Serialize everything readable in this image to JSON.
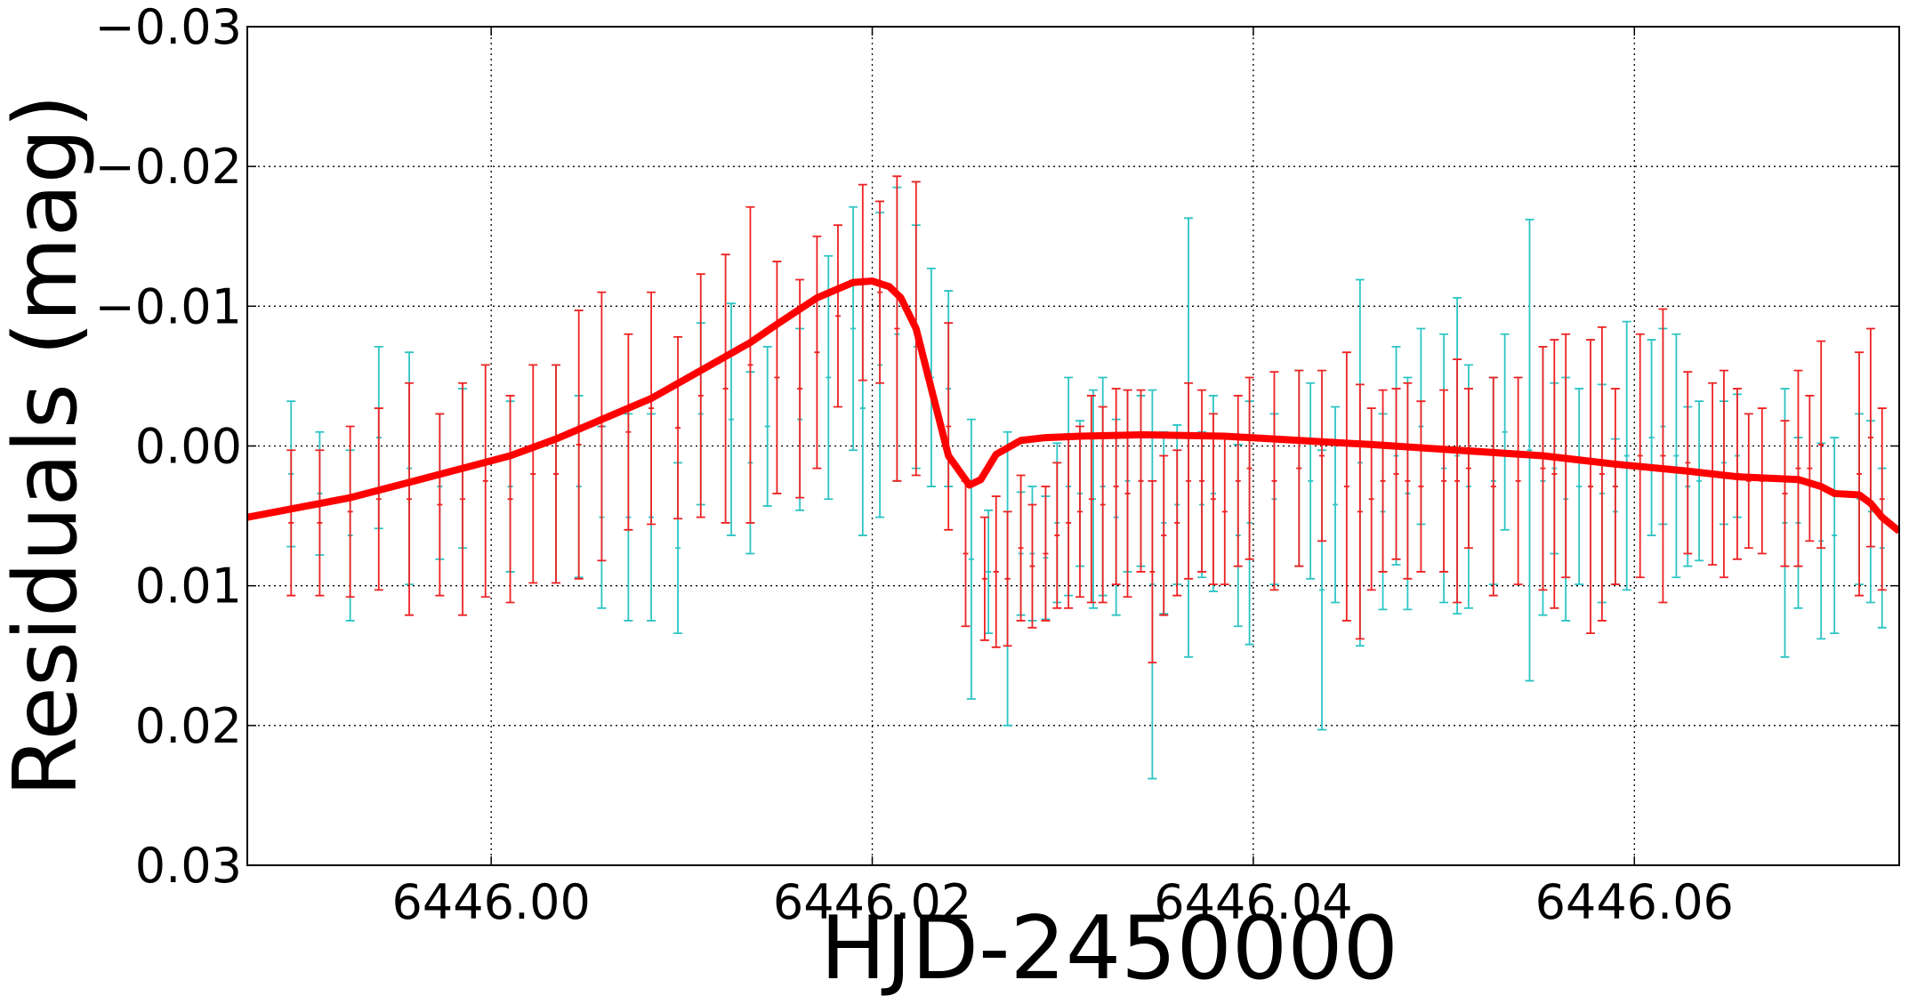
{
  "chart_data": {
    "type": "errorbar",
    "xlabel": "HJD-2450000",
    "ylabel": "Residuals (mag)",
    "xlim": [
      6445.9872,
      6446.0739
    ],
    "ylim": [
      0.03,
      -0.03
    ],
    "xticks": [
      {
        "value": 6446,
        "label": "6446.00"
      },
      6446.02,
      6446.04,
      6446.06
    ],
    "yticks": [
      {
        "value": -0.03,
        "label": "−0.03"
      },
      {
        "value": -0.02,
        "label": "−0.02"
      },
      {
        "value": -0.01,
        "label": "−0.01"
      },
      {
        "value": 0,
        "label": "0.00"
      },
      0.01,
      0.02,
      0.03
    ],
    "grid": true,
    "series": [
      {
        "kind": "errorbar",
        "color": "#2ec4c4",
        "x": [
          6445.9895,
          6445.991,
          6445.9926,
          6445.9941,
          6445.9957,
          6445.9973,
          6445.9985,
          6446.001,
          6446.0034,
          6446.0046,
          6446.0058,
          6446.0072,
          6446.0084,
          6446.0098,
          6446.011,
          6446.0126,
          6446.0136,
          6446.0145,
          6446.0162,
          6446.0177,
          6446.019,
          6446.0195,
          6446.0204,
          6446.0213,
          6446.0223,
          6446.0231,
          6446.024,
          6446.0252,
          6446.0261,
          6446.0271,
          6446.0278,
          6446.0284,
          6446.0291,
          6446.0297,
          6446.0303,
          6446.0309,
          6446.0316,
          6446.0321,
          6446.0328,
          6446.0334,
          6446.0341,
          6446.0347,
          6446.0353,
          6446.036,
          6446.0366,
          6446.0373,
          6446.0379,
          6446.0392,
          6446.0398,
          6446.0411,
          6446.0424,
          6446.043,
          6446.0436,
          6446.0443,
          6446.0456,
          6446.0468,
          6446.0475,
          6446.0481,
          6446.0488,
          6446.05,
          6446.0507,
          6446.0513,
          6446.0526,
          6446.0532,
          6446.0545,
          6446.0552,
          6446.0558,
          6446.0564,
          6446.0571,
          6446.0583,
          6446.059,
          6446.0596,
          6446.0609,
          6446.0615,
          6446.0622,
          6446.0628,
          6446.0634,
          6446.0647,
          6446.0654,
          6446.0679,
          6446.0686,
          6446.0698,
          6446.0705,
          6446.0718,
          6446.0724,
          6446.073
        ],
        "values": [
          0.002,
          0.0034,
          0.0064,
          -0.0006,
          0.0016,
          0.0029,
          0.0016,
          0.0029,
          0.002,
          0.0029,
          0.0051,
          0.0051,
          0.0051,
          0.0073,
          -0.0023,
          -0.0019,
          0.0012,
          -0.0014,
          -0.0019,
          -0.0049,
          -0.0084,
          -0.0027,
          -0.0058,
          -0.008,
          -0.0071,
          -0.0049,
          -0.0041,
          0.0081,
          0.009,
          0.0095,
          0.0077,
          0.0077,
          0.008,
          0.0055,
          0.0029,
          0.0034,
          0.0038,
          0.0029,
          0.0051,
          0.0025,
          0.0025,
          0.0099,
          0.0055,
          0.0042,
          -0.0006,
          0.0042,
          0.0034,
          0.0064,
          0.0055,
          0.0038,
          0.0016,
          0.0025,
          0.0103,
          0.0042,
          0.0012,
          0.0047,
          0.0007,
          0.0034,
          -0.0014,
          0.0016,
          0.0007,
          0.0029,
          0.0025,
          -0.001,
          0.0003,
          0.0025,
          0.0016,
          0.0038,
          0.0029,
          0.0034,
          0.0047,
          0.0007,
          -0.0006,
          -0.0014,
          0.0007,
          0.0029,
          0.0025,
          0.0012,
          0.0007,
          0.0055,
          0.0055,
          0.0068,
          0.0064,
          0.0038,
          0.0047,
          0.0073
        ],
        "errors": [
          0.0052,
          0.0044,
          0.0061,
          0.0065,
          0.0083,
          0.0052,
          0.0057,
          0.0061,
          0.0078,
          0.0065,
          0.0065,
          0.0074,
          0.0074,
          0.0061,
          0.0065,
          0.0083,
          0.0065,
          0.0057,
          0.0065,
          0.0087,
          0.0087,
          0.0091,
          0.0109,
          0.0105,
          0.0087,
          0.0078,
          0.007,
          0.01,
          0.0044,
          0.0105,
          0.0044,
          0.0048,
          0.0044,
          0.0057,
          0.0078,
          0.0052,
          0.0078,
          0.0078,
          0.007,
          0.0065,
          0.0061,
          0.0139,
          0.0065,
          0.0057,
          0.0157,
          0.0052,
          0.007,
          0.0065,
          0.0087,
          0.0061,
          0.007,
          0.007,
          0.01,
          0.007,
          0.0131,
          0.007,
          0.0078,
          0.0083,
          0.007,
          0.0096,
          0.0113,
          0.0087,
          0.0074,
          0.007,
          0.0165,
          0.0096,
          0.0061,
          0.0087,
          0.007,
          0.0078,
          0.0052,
          0.0096,
          0.007,
          0.007,
          0.0087,
          0.0057,
          0.0057,
          0.0044,
          0.0044,
          0.0096,
          0.0061,
          0.007,
          0.007,
          0.0061,
          0.0065,
          0.0057
        ]
      },
      {
        "kind": "errorbar",
        "color": "#ee2222",
        "x": [
          6445.9895,
          6445.991,
          6445.9926,
          6445.9941,
          6445.9957,
          6445.9973,
          6445.9985,
          6445.9997,
          6446.001,
          6446.0022,
          6446.0034,
          6446.0046,
          6446.0058,
          6446.0072,
          6446.0084,
          6446.0098,
          6446.011,
          6446.0123,
          6446.0136,
          6446.015,
          6446.0162,
          6446.0171,
          6446.0182,
          6446.0195,
          6446.0204,
          6446.0213,
          6446.0223,
          6446.024,
          6446.0249,
          6446.0259,
          6446.0265,
          6446.0271,
          6446.0278,
          6446.0284,
          6446.0291,
          6446.0297,
          6446.0303,
          6446.0309,
          6446.0315,
          6446.0321,
          6446.0328,
          6446.0334,
          6446.0341,
          6446.0347,
          6446.0353,
          6446.036,
          6446.0366,
          6446.0373,
          6446.0379,
          6446.0385,
          6446.0392,
          6446.0398,
          6446.0411,
          6446.0424,
          6446.0436,
          6446.0449,
          6446.0456,
          6446.0462,
          6446.0468,
          6446.0475,
          6446.0481,
          6446.0488,
          6446.05,
          6446.0507,
          6446.0513,
          6446.0526,
          6446.0539,
          6446.0552,
          6446.0558,
          6446.0564,
          6446.0577,
          6446.0583,
          6446.059,
          6446.0603,
          6446.0615,
          6446.0628,
          6446.0641,
          6446.0647,
          6446.0654,
          6446.066,
          6446.0667,
          6446.0679,
          6446.0686,
          6446.0692,
          6446.0698,
          6446.0718,
          6446.0724,
          6446.073
        ],
        "values": [
          0.0055,
          0.0055,
          0.0047,
          0.0038,
          0.0038,
          0.0042,
          0.0038,
          0.0025,
          0.0038,
          0.002,
          0.002,
          -0.0001,
          -0.0014,
          -0.001,
          -0.0027,
          -0.0013,
          -0.0036,
          -0.0041,
          -0.0058,
          -0.0049,
          -0.0041,
          -0.0067,
          -0.0093,
          -0.0117,
          -0.011,
          -0.0084,
          -0.0084,
          -0.0014,
          0.0077,
          0.0095,
          0.009,
          0.0095,
          0.0073,
          0.0086,
          0.0077,
          0.0064,
          0.0055,
          0.0047,
          0.0038,
          0.0042,
          0.0029,
          0.0034,
          0.0025,
          0.009,
          0.0064,
          0.0055,
          0.0025,
          0.0025,
          0.0038,
          0.0047,
          0.0025,
          0.0016,
          0.0025,
          0.0016,
          0.0007,
          0.0029,
          0.0047,
          0.0038,
          0.0025,
          0.002,
          0.0025,
          0.0029,
          0.0025,
          0.0025,
          0.0016,
          0.0029,
          0.0025,
          0.0016,
          0.002,
          0.0007,
          0.0029,
          0.002,
          0.0029,
          0.0007,
          0.0007,
          0.0012,
          0.002,
          0.002,
          0.002,
          0.0025,
          0.0025,
          0.0034,
          0.0016,
          0.0016,
          -0.0001,
          0.002,
          -0.0006,
          0.0038
        ],
        "errors": [
          0.0052,
          0.0052,
          0.0061,
          0.0065,
          0.0083,
          0.0065,
          0.0083,
          0.0083,
          0.0074,
          0.0078,
          0.0078,
          0.0096,
          0.0096,
          0.007,
          0.0083,
          0.0065,
          0.0087,
          0.0096,
          0.0113,
          0.0083,
          0.0078,
          0.0083,
          0.0065,
          0.007,
          0.0065,
          0.0109,
          0.0105,
          0.0074,
          0.0052,
          0.0044,
          0.0054,
          0.0048,
          0.0052,
          0.0044,
          0.0048,
          0.0052,
          0.0061,
          0.0061,
          0.0074,
          0.007,
          0.007,
          0.0074,
          0.0065,
          0.0065,
          0.0057,
          0.0052,
          0.007,
          0.0065,
          0.0061,
          0.0052,
          0.0061,
          0.0065,
          0.0078,
          0.007,
          0.0061,
          0.0096,
          0.0091,
          0.0065,
          0.0065,
          0.0061,
          0.007,
          0.0061,
          0.0065,
          0.0087,
          0.0057,
          0.0078,
          0.0074,
          0.0087,
          0.0096,
          0.0087,
          0.0105,
          0.0105,
          0.007,
          0.0087,
          0.0105,
          0.0065,
          0.0065,
          0.0074,
          0.0061,
          0.0048,
          0.0052,
          0.0052,
          0.007,
          0.0052,
          0.0074,
          0.0087,
          0.0078,
          0.0065
        ]
      },
      {
        "kind": "line",
        "color": "#ff0000",
        "x": [
          6445.9872,
          6445.9926,
          6445.9957,
          6445.9985,
          6446.001,
          6446.0034,
          6446.0058,
          6446.0084,
          6446.011,
          6446.0136,
          6446.0151,
          6446.0171,
          6446.019,
          6446.02,
          6446.0209,
          6446.0215,
          6446.0223,
          6446.0231,
          6446.024,
          6446.0251,
          6446.0257,
          6446.0265,
          6446.0278,
          6446.0291,
          6446.0309,
          6446.0341,
          6446.0385,
          6446.0424,
          6446.0462,
          6446.0507,
          6446.0552,
          6446.059,
          6446.0628,
          6446.0654,
          6446.0686,
          6446.0698,
          6446.0705,
          6446.0718,
          6446.0724,
          6446.073,
          6446.0739
        ],
        "values": [
          0.0051,
          0.0037,
          0.0026,
          0.0016,
          0.0007,
          -0.0005,
          -0.0019,
          -0.0034,
          -0.0054,
          -0.0074,
          -0.0088,
          -0.0106,
          -0.0117,
          -0.0118,
          -0.0114,
          -0.0106,
          -0.0084,
          -0.0041,
          0.0007,
          0.0028,
          0.0024,
          0.0006,
          -0.0004,
          -0.0006,
          -0.0007,
          -0.0008,
          -0.0007,
          -0.0004,
          -0.0001,
          0.0003,
          0.0007,
          0.0013,
          0.0018,
          0.0022,
          0.0024,
          0.0029,
          0.0034,
          0.0035,
          0.0041,
          0.0051,
          0.0061
        ]
      }
    ]
  }
}
